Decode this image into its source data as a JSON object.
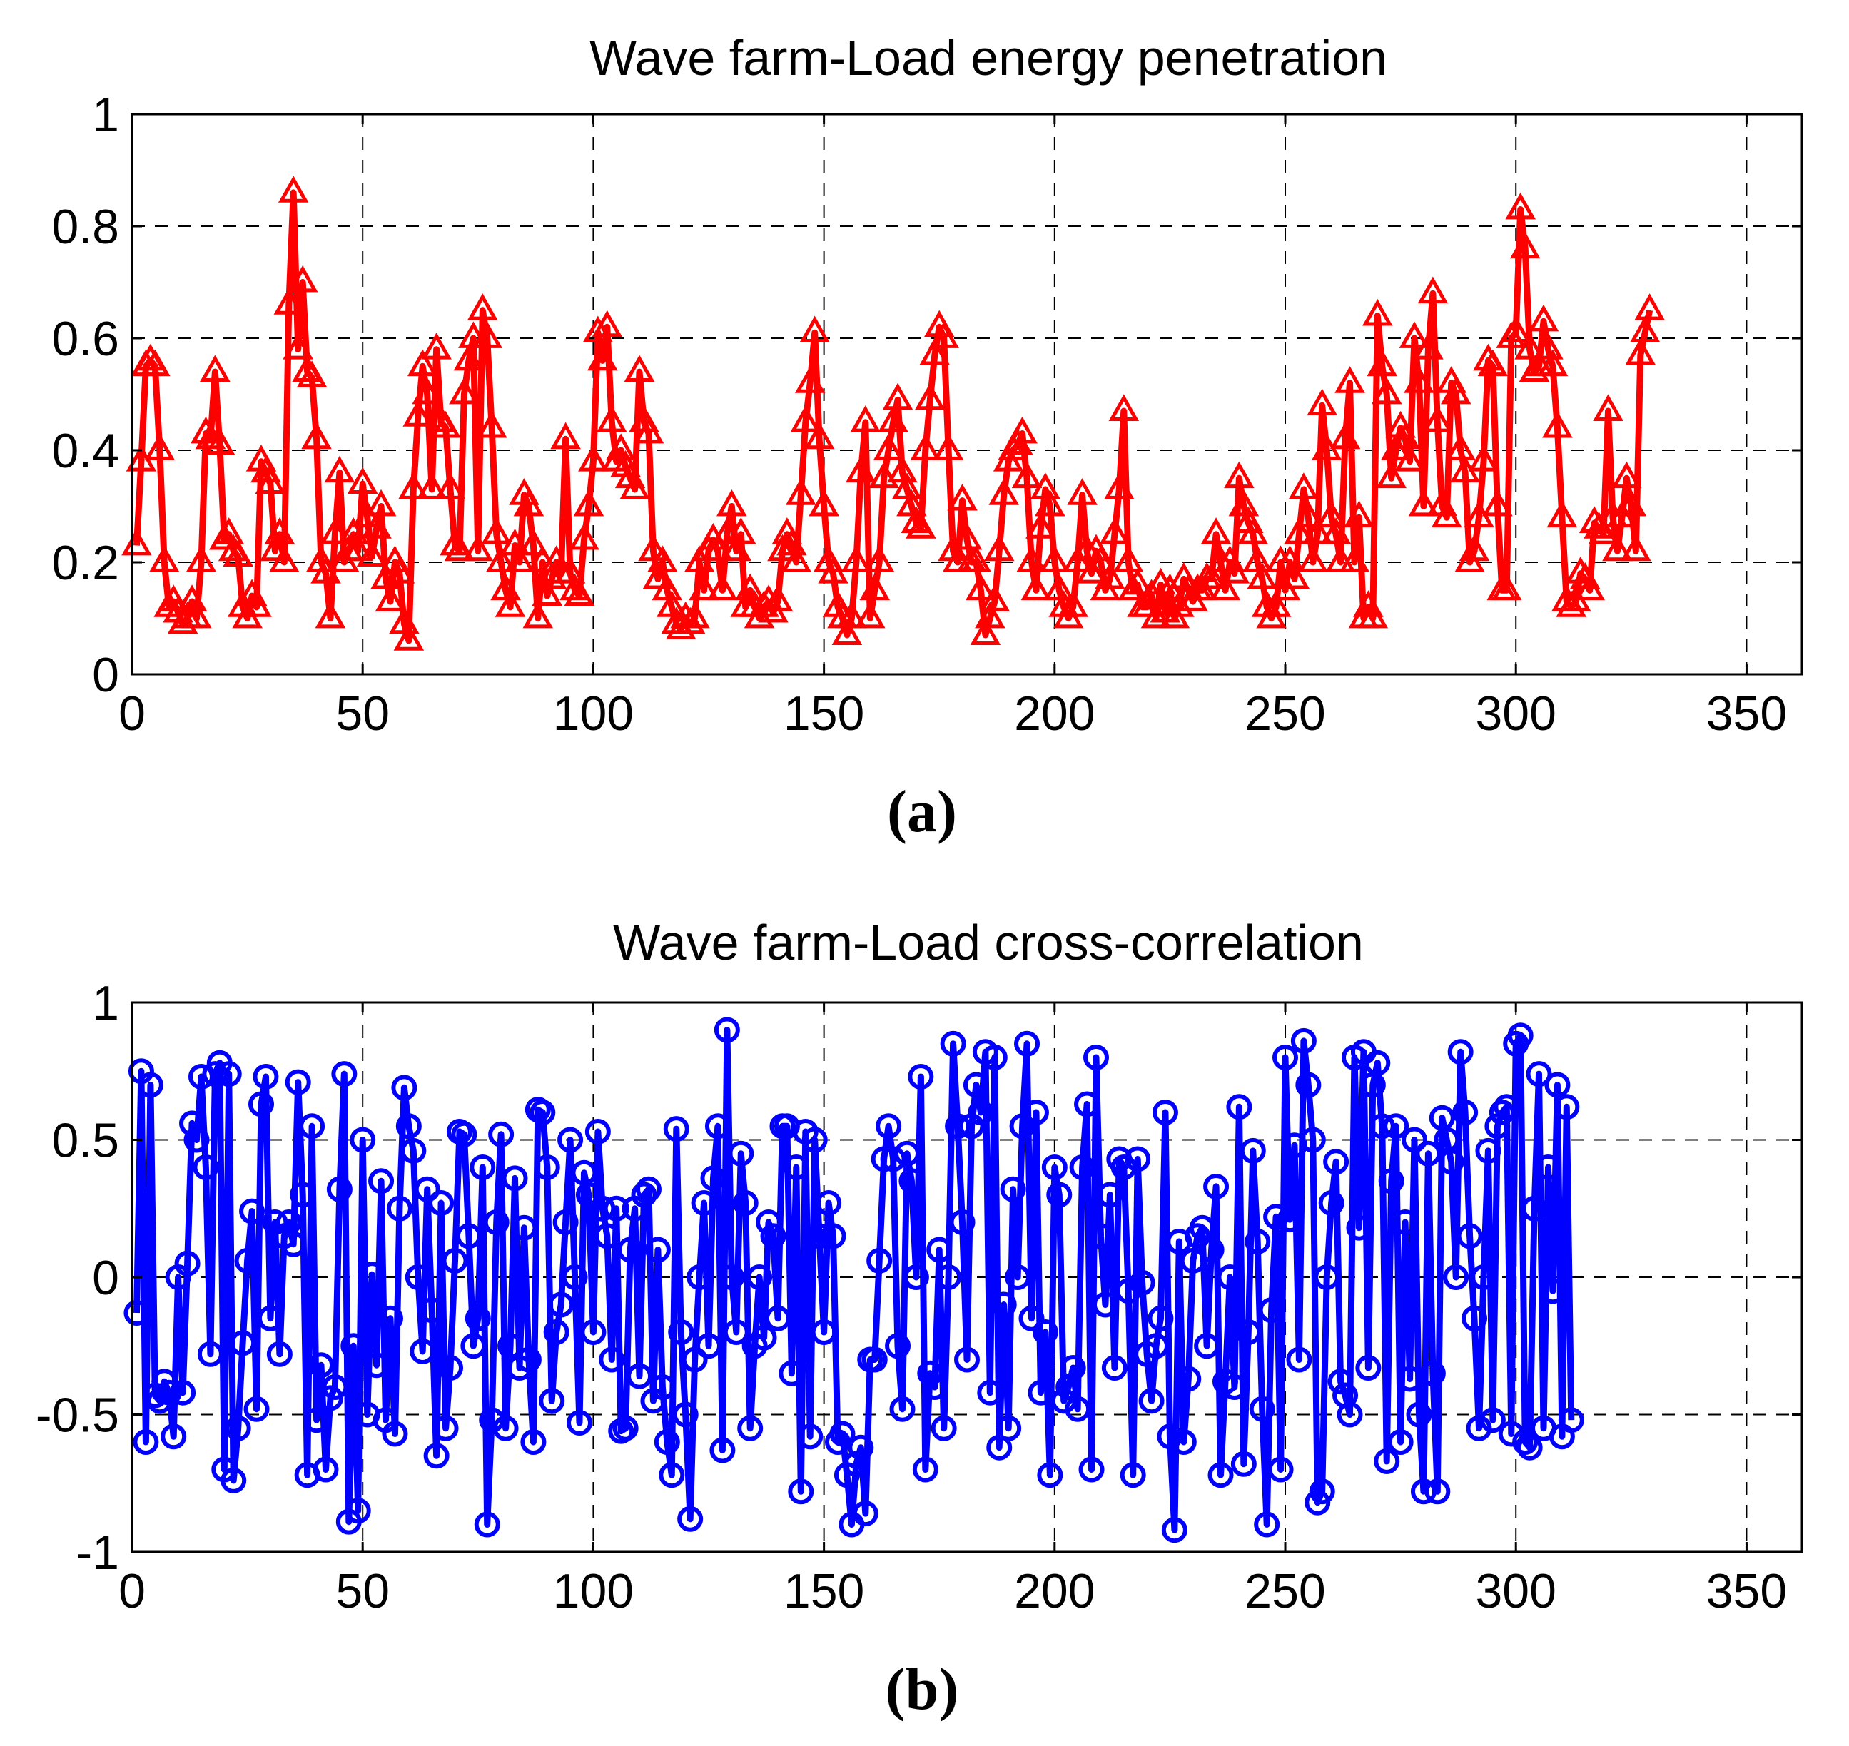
{
  "chart_data": [
    {
      "type": "line",
      "title": "Wave farm-Load energy penetration",
      "caption": "(a)",
      "xlabel": "",
      "ylabel": "",
      "xlim": [
        0,
        362
      ],
      "ylim": [
        0,
        1
      ],
      "xticks": [
        0,
        50,
        100,
        150,
        200,
        250,
        300,
        350
      ],
      "yticks": [
        0,
        0.2,
        0.4,
        0.6,
        0.8,
        1
      ],
      "ytick_labels": [
        "0",
        "0.2",
        "0.4",
        "0.6",
        "0.8",
        "1"
      ],
      "grid": true,
      "series": [
        {
          "name": "Wave farm-Load energy penetration",
          "color": "#ff0000",
          "marker": "triangle",
          "x_start": 1,
          "values": [
            0.23,
            0.38,
            0.55,
            0.56,
            0.55,
            0.4,
            0.2,
            0.12,
            0.13,
            0.11,
            0.09,
            0.1,
            0.13,
            0.1,
            0.2,
            0.43,
            0.42,
            0.54,
            0.41,
            0.24,
            0.25,
            0.22,
            0.21,
            0.12,
            0.1,
            0.14,
            0.12,
            0.38,
            0.36,
            0.34,
            0.22,
            0.25,
            0.2,
            0.66,
            0.86,
            0.58,
            0.7,
            0.54,
            0.53,
            0.42,
            0.2,
            0.18,
            0.1,
            0.25,
            0.36,
            0.2,
            0.22,
            0.25,
            0.22,
            0.34,
            0.28,
            0.21,
            0.26,
            0.3,
            0.17,
            0.13,
            0.2,
            0.18,
            0.09,
            0.06,
            0.33,
            0.46,
            0.55,
            0.5,
            0.33,
            0.58,
            0.45,
            0.44,
            0.33,
            0.23,
            0.22,
            0.5,
            0.56,
            0.6,
            0.22,
            0.65,
            0.6,
            0.44,
            0.25,
            0.2,
            0.15,
            0.12,
            0.23,
            0.2,
            0.32,
            0.3,
            0.23,
            0.1,
            0.2,
            0.14,
            0.17,
            0.2,
            0.18,
            0.42,
            0.18,
            0.15,
            0.14,
            0.24,
            0.3,
            0.38,
            0.61,
            0.56,
            0.62,
            0.45,
            0.38,
            0.4,
            0.37,
            0.35,
            0.33,
            0.54,
            0.45,
            0.43,
            0.22,
            0.17,
            0.2,
            0.15,
            0.12,
            0.09,
            0.08,
            0.1,
            0.09,
            0.1,
            0.2,
            0.15,
            0.22,
            0.24,
            0.22,
            0.15,
            0.25,
            0.3,
            0.22,
            0.25,
            0.12,
            0.15,
            0.12,
            0.1,
            0.12,
            0.13,
            0.11,
            0.13,
            0.22,
            0.25,
            0.23,
            0.2,
            0.32,
            0.45,
            0.52,
            0.61,
            0.42,
            0.3,
            0.2,
            0.18,
            0.12,
            0.1,
            0.07,
            0.1,
            0.2,
            0.36,
            0.45,
            0.1,
            0.15,
            0.2,
            0.35,
            0.4,
            0.45,
            0.49,
            0.36,
            0.33,
            0.3,
            0.27,
            0.26,
            0.4,
            0.49,
            0.57,
            0.62,
            0.6,
            0.4,
            0.22,
            0.2,
            0.31,
            0.24,
            0.2,
            0.2,
            0.15,
            0.07,
            0.1,
            0.13,
            0.22,
            0.32,
            0.38,
            0.4,
            0.41,
            0.43,
            0.35,
            0.2,
            0.15,
            0.26,
            0.33,
            0.3,
            0.2,
            0.15,
            0.12,
            0.1,
            0.12,
            0.2,
            0.32,
            0.22,
            0.18,
            0.22,
            0.2,
            0.15,
            0.17,
            0.25,
            0.33,
            0.47,
            0.2,
            0.15,
            0.16,
            0.12,
            0.12,
            0.14,
            0.1,
            0.16,
            0.11,
            0.15,
            0.1,
            0.12,
            0.17,
            0.15,
            0.13,
            0.15,
            0.15,
            0.17,
            0.17,
            0.25,
            0.2,
            0.15,
            0.2,
            0.18,
            0.35,
            0.3,
            0.27,
            0.25,
            0.2,
            0.17,
            0.12,
            0.1,
            0.12,
            0.2,
            0.15,
            0.2,
            0.17,
            0.25,
            0.33,
            0.28,
            0.2,
            0.25,
            0.48,
            0.4,
            0.28,
            0.25,
            0.2,
            0.42,
            0.52,
            0.2,
            0.28,
            0.1,
            0.12,
            0.1,
            0.64,
            0.55,
            0.5,
            0.35,
            0.4,
            0.44,
            0.42,
            0.38,
            0.6,
            0.52,
            0.3,
            0.58,
            0.68,
            0.45,
            0.3,
            0.28,
            0.52,
            0.5,
            0.4,
            0.36,
            0.2,
            0.22,
            0.28,
            0.38,
            0.56,
            0.55,
            0.3,
            0.15,
            0.15,
            0.6,
            0.61,
            0.83,
            0.76,
            0.58,
            0.54,
            0.55,
            0.63,
            0.58,
            0.55,
            0.44,
            0.28,
            0.13,
            0.12,
            0.13,
            0.18,
            0.17,
            0.15,
            0.27,
            0.26,
            0.25,
            0.47,
            0.28,
            0.22,
            0.28,
            0.35,
            0.3,
            0.22,
            0.57,
            0.61,
            0.65
          ]
        }
      ]
    },
    {
      "type": "line",
      "title": "Wave farm-Load cross-correlation",
      "caption": "(b)",
      "xlabel": "",
      "ylabel": "",
      "xlim": [
        0,
        362
      ],
      "ylim": [
        -1,
        1
      ],
      "xticks": [
        0,
        50,
        100,
        150,
        200,
        250,
        300,
        350
      ],
      "yticks": [
        -1,
        -0.5,
        0,
        0.5,
        1
      ],
      "ytick_labels": [
        "-1",
        "-0.5",
        "0",
        "0.5",
        "1"
      ],
      "grid": true,
      "series": [
        {
          "name": "Wave farm-Load cross-correlation",
          "color": "#0000ff",
          "marker": "circle",
          "x_start": 1,
          "values": [
            -0.13,
            0.75,
            -0.6,
            0.7,
            -0.43,
            -0.45,
            -0.38,
            -0.42,
            -0.58,
            0.0,
            -0.42,
            0.05,
            0.56,
            0.5,
            0.73,
            0.4,
            -0.28,
            0.74,
            0.78,
            -0.7,
            0.74,
            -0.74,
            -0.55,
            -0.24,
            0.06,
            0.24,
            -0.48,
            0.63,
            0.73,
            -0.15,
            0.2,
            -0.28,
            0.15,
            0.2,
            0.12,
            0.71,
            0.3,
            -0.72,
            0.55,
            -0.52,
            -0.32,
            -0.7,
            -0.44,
            -0.4,
            0.32,
            0.74,
            -0.89,
            -0.25,
            -0.85,
            0.5,
            -0.5,
            0.01,
            -0.32,
            0.35,
            -0.52,
            -0.15,
            -0.57,
            0.25,
            0.69,
            0.55,
            0.46,
            0.0,
            -0.27,
            0.32,
            -0.12,
            -0.65,
            0.27,
            -0.55,
            -0.33,
            0.06,
            0.53,
            0.52,
            0.15,
            -0.25,
            -0.15,
            0.4,
            -0.9,
            -0.52,
            0.2,
            0.52,
            -0.55,
            -0.25,
            0.36,
            -0.33,
            0.18,
            -0.3,
            -0.6,
            0.61,
            0.6,
            0.4,
            -0.45,
            -0.2,
            -0.1,
            0.2,
            0.5,
            0.0,
            -0.53,
            0.38,
            0.3,
            -0.2,
            0.53,
            0.25,
            0.15,
            -0.3,
            0.25,
            -0.56,
            -0.55,
            0.1,
            0.25,
            -0.36,
            0.3,
            0.32,
            -0.45,
            0.1,
            -0.4,
            -0.6,
            -0.72,
            0.54,
            -0.2,
            -0.5,
            -0.88,
            -0.3,
            0.0,
            0.27,
            -0.25,
            0.36,
            0.55,
            -0.63,
            0.9,
            0.0,
            -0.2,
            0.45,
            0.27,
            -0.55,
            -0.25,
            0.0,
            -0.22,
            0.2,
            0.15,
            -0.15,
            0.55,
            0.55,
            -0.35,
            0.4,
            -0.78,
            0.53,
            -0.58,
            0.5,
            0.15,
            -0.2,
            0.27,
            0.15,
            -0.6,
            -0.57,
            -0.72,
            -0.9,
            -0.68,
            -0.62,
            -0.86,
            -0.3,
            -0.3,
            0.06,
            0.43,
            0.55,
            0.43,
            -0.25,
            -0.48,
            0.45,
            0.35,
            0.0,
            0.73,
            -0.7,
            -0.35,
            -0.4,
            0.1,
            -0.55,
            0.0,
            0.85,
            0.55,
            0.2,
            -0.3,
            0.55,
            0.7,
            0.6,
            0.82,
            -0.42,
            0.8,
            -0.62,
            -0.1,
            -0.55,
            0.32,
            0.0,
            0.55,
            0.85,
            -0.15,
            0.6,
            -0.42,
            -0.2,
            -0.72,
            0.4,
            0.3,
            -0.45,
            -0.4,
            -0.33,
            -0.48,
            0.4,
            0.63,
            -0.7,
            0.8,
            0.15,
            -0.1,
            0.3,
            -0.33,
            0.43,
            0.4,
            -0.05,
            -0.72,
            0.43,
            -0.02,
            -0.28,
            -0.45,
            -0.25,
            -0.15,
            0.6,
            -0.58,
            -0.92,
            0.13,
            -0.6,
            -0.37,
            0.06,
            0.15,
            0.18,
            -0.25,
            0.1,
            0.33,
            -0.72,
            -0.38,
            0.0,
            -0.4,
            0.62,
            -0.68,
            -0.2,
            0.46,
            0.13,
            -0.48,
            -0.9,
            -0.12,
            0.22,
            -0.7,
            0.8,
            0.21,
            0.48,
            -0.3,
            0.86,
            0.7,
            0.5,
            -0.82,
            -0.78,
            0.0,
            0.27,
            0.42,
            -0.38,
            -0.43,
            -0.5,
            0.8,
            0.18,
            0.82,
            -0.33,
            0.7,
            0.78,
            0.55,
            -0.67,
            0.35,
            0.55,
            -0.6,
            0.2,
            -0.37,
            0.5,
            -0.5,
            -0.78,
            0.45,
            -0.35,
            -0.78,
            0.58,
            0.5,
            0.42,
            0.0,
            0.82,
            0.6,
            0.15,
            -0.15,
            -0.55,
            0.0,
            0.46,
            -0.52,
            0.55,
            0.6,
            0.62,
            -0.57,
            0.85,
            0.88,
            -0.6,
            -0.62,
            0.25,
            0.74,
            -0.55,
            0.4,
            -0.05,
            0.7,
            -0.58,
            0.62,
            -0.52
          ]
        }
      ]
    }
  ]
}
